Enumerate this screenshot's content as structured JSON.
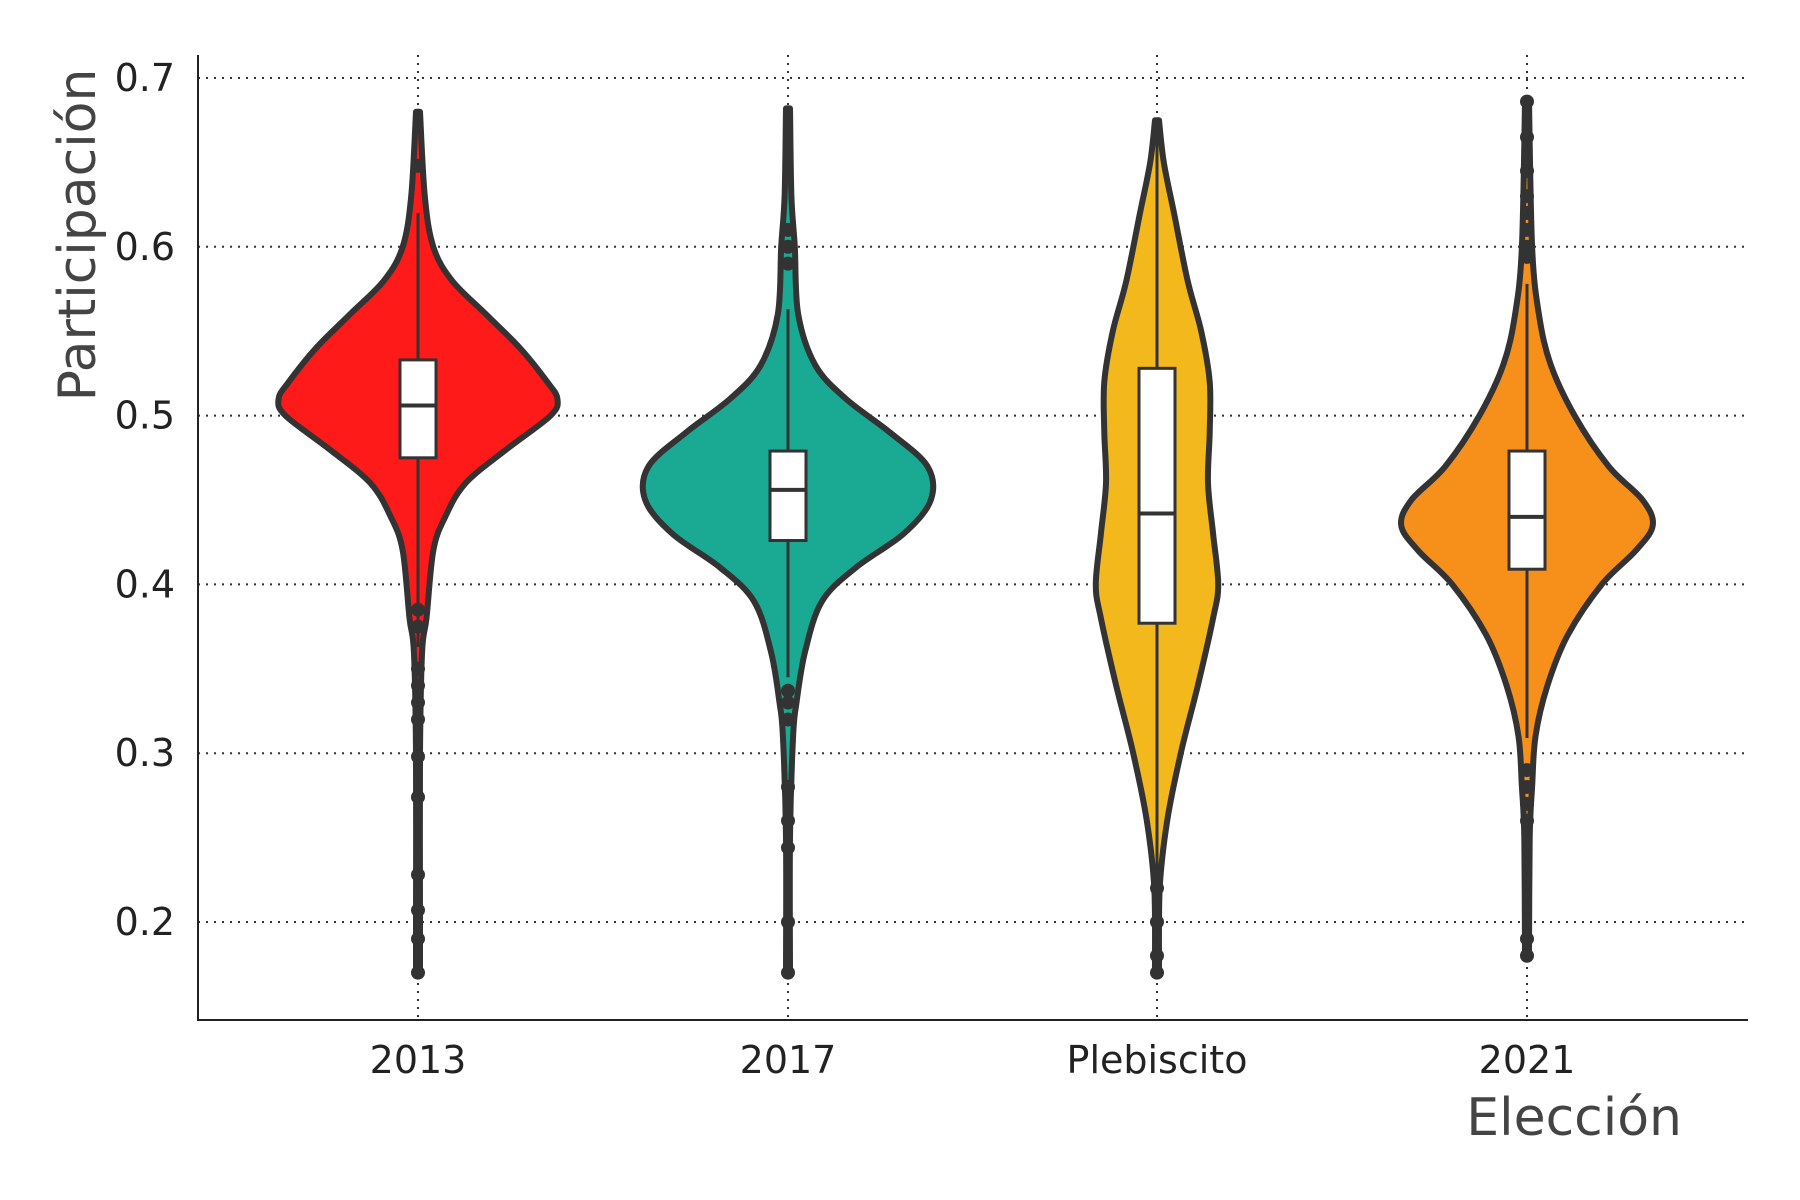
{
  "chart_data": {
    "type": "violin",
    "title": "",
    "xlabel": "Elección",
    "ylabel": "Participación",
    "ylim": [
      0.15,
      0.72
    ],
    "yticks": [
      0.2,
      0.3,
      0.4,
      0.5,
      0.6,
      0.7
    ],
    "ytick_labels": [
      "0.2",
      "0.3",
      "0.4",
      "0.5",
      "0.6",
      "0.7"
    ],
    "grid": true,
    "legend": "none",
    "categories": [
      "2013",
      "2017",
      "Plebiscito",
      "2021"
    ],
    "series": [
      {
        "category": "2013",
        "color": "#FF1A1A",
        "min": 0.168,
        "q1": 0.475,
        "median": 0.506,
        "q3": 0.533,
        "max": 0.679,
        "whisker_low": 0.363,
        "whisker_high": 0.62,
        "density": [
          [
            0.168,
            0.006
          ],
          [
            0.2,
            0.006
          ],
          [
            0.3,
            0.006
          ],
          [
            0.36,
            0.012
          ],
          [
            0.38,
            0.025
          ],
          [
            0.42,
            0.045
          ],
          [
            0.44,
            0.08
          ],
          [
            0.46,
            0.14
          ],
          [
            0.48,
            0.26
          ],
          [
            0.5,
            0.39
          ],
          [
            0.51,
            0.41
          ],
          [
            0.52,
            0.38
          ],
          [
            0.54,
            0.3
          ],
          [
            0.56,
            0.2
          ],
          [
            0.58,
            0.1
          ],
          [
            0.6,
            0.045
          ],
          [
            0.63,
            0.02
          ],
          [
            0.68,
            0.006
          ]
        ],
        "outliers": [
          0.648,
          0.385,
          0.375,
          0.35,
          0.34,
          0.33,
          0.32,
          0.298,
          0.274,
          0.228,
          0.207,
          0.19,
          0.17
        ]
      },
      {
        "category": "2017",
        "color": "#1AA993",
        "min": 0.17,
        "q1": 0.426,
        "median": 0.456,
        "q3": 0.479,
        "max": 0.682,
        "whisker_low": 0.345,
        "whisker_high": 0.563,
        "density": [
          [
            0.17,
            0.006
          ],
          [
            0.25,
            0.006
          ],
          [
            0.31,
            0.015
          ],
          [
            0.33,
            0.025
          ],
          [
            0.36,
            0.05
          ],
          [
            0.39,
            0.1
          ],
          [
            0.41,
            0.2
          ],
          [
            0.43,
            0.34
          ],
          [
            0.45,
            0.42
          ],
          [
            0.47,
            0.41
          ],
          [
            0.49,
            0.3
          ],
          [
            0.51,
            0.17
          ],
          [
            0.53,
            0.08
          ],
          [
            0.56,
            0.03
          ],
          [
            0.6,
            0.02
          ],
          [
            0.63,
            0.01
          ],
          [
            0.682,
            0.006
          ]
        ],
        "outliers": [
          0.61,
          0.6,
          0.59,
          0.337,
          0.33,
          0.32,
          0.28,
          0.26,
          0.244,
          0.2,
          0.17
        ]
      },
      {
        "category": "Plebiscito",
        "color": "#F2B81C",
        "min": 0.17,
        "q1": 0.377,
        "median": 0.442,
        "q3": 0.528,
        "max": 0.675,
        "whisker_low": 0.17,
        "whisker_high": 0.675,
        "density": [
          [
            0.17,
            0.006
          ],
          [
            0.22,
            0.008
          ],
          [
            0.26,
            0.03
          ],
          [
            0.3,
            0.07
          ],
          [
            0.34,
            0.12
          ],
          [
            0.38,
            0.165
          ],
          [
            0.4,
            0.18
          ],
          [
            0.43,
            0.165
          ],
          [
            0.46,
            0.15
          ],
          [
            0.49,
            0.155
          ],
          [
            0.52,
            0.155
          ],
          [
            0.55,
            0.13
          ],
          [
            0.58,
            0.09
          ],
          [
            0.62,
            0.05
          ],
          [
            0.65,
            0.02
          ],
          [
            0.675,
            0.006
          ]
        ],
        "outliers": [
          0.22,
          0.2,
          0.18,
          0.17
        ]
      },
      {
        "category": "2021",
        "color": "#F7901A",
        "min": 0.18,
        "q1": 0.409,
        "median": 0.44,
        "q3": 0.479,
        "max": 0.686,
        "whisker_low": 0.309,
        "whisker_high": 0.578,
        "density": [
          [
            0.18,
            0.006
          ],
          [
            0.25,
            0.008
          ],
          [
            0.28,
            0.015
          ],
          [
            0.31,
            0.025
          ],
          [
            0.34,
            0.06
          ],
          [
            0.37,
            0.12
          ],
          [
            0.4,
            0.22
          ],
          [
            0.42,
            0.32
          ],
          [
            0.435,
            0.37
          ],
          [
            0.45,
            0.34
          ],
          [
            0.47,
            0.24
          ],
          [
            0.5,
            0.14
          ],
          [
            0.53,
            0.07
          ],
          [
            0.56,
            0.035
          ],
          [
            0.6,
            0.015
          ],
          [
            0.686,
            0.006
          ]
        ],
        "outliers": [
          0.686,
          0.665,
          0.645,
          0.63,
          0.62,
          0.61,
          0.6,
          0.594,
          0.29,
          0.28,
          0.27,
          0.26,
          0.19,
          0.18
        ]
      }
    ]
  }
}
